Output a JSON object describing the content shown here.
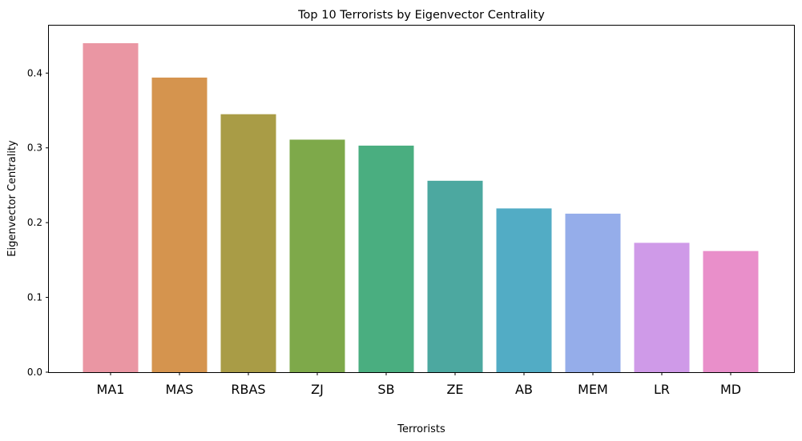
{
  "chart_data": {
    "type": "bar",
    "title": "Top 10 Terrorists by Eigenvector Centrality",
    "xlabel": "Terrorists",
    "ylabel": "Eigenvector Centrality",
    "categories": [
      "MA1",
      "MAS",
      "RBAS",
      "ZJ",
      "SB",
      "ZE",
      "AB",
      "MEM",
      "LR",
      "MD"
    ],
    "values": [
      0.44,
      0.394,
      0.345,
      0.311,
      0.303,
      0.256,
      0.219,
      0.212,
      0.173,
      0.162
    ],
    "colors": [
      "#ea96a3",
      "#d5944e",
      "#a99c46",
      "#7ea94a",
      "#4aae80",
      "#4ca8a0",
      "#52acc5",
      "#95adea",
      "#cf9ae8",
      "#e98fca"
    ],
    "ylim": [
      0,
      0.4635
    ],
    "yticks": [
      0.0,
      0.1,
      0.2,
      0.3,
      0.4
    ],
    "ytick_labels": [
      "0.0",
      "0.1",
      "0.2",
      "0.3",
      "0.4"
    ],
    "grid": false,
    "legend": false
  }
}
